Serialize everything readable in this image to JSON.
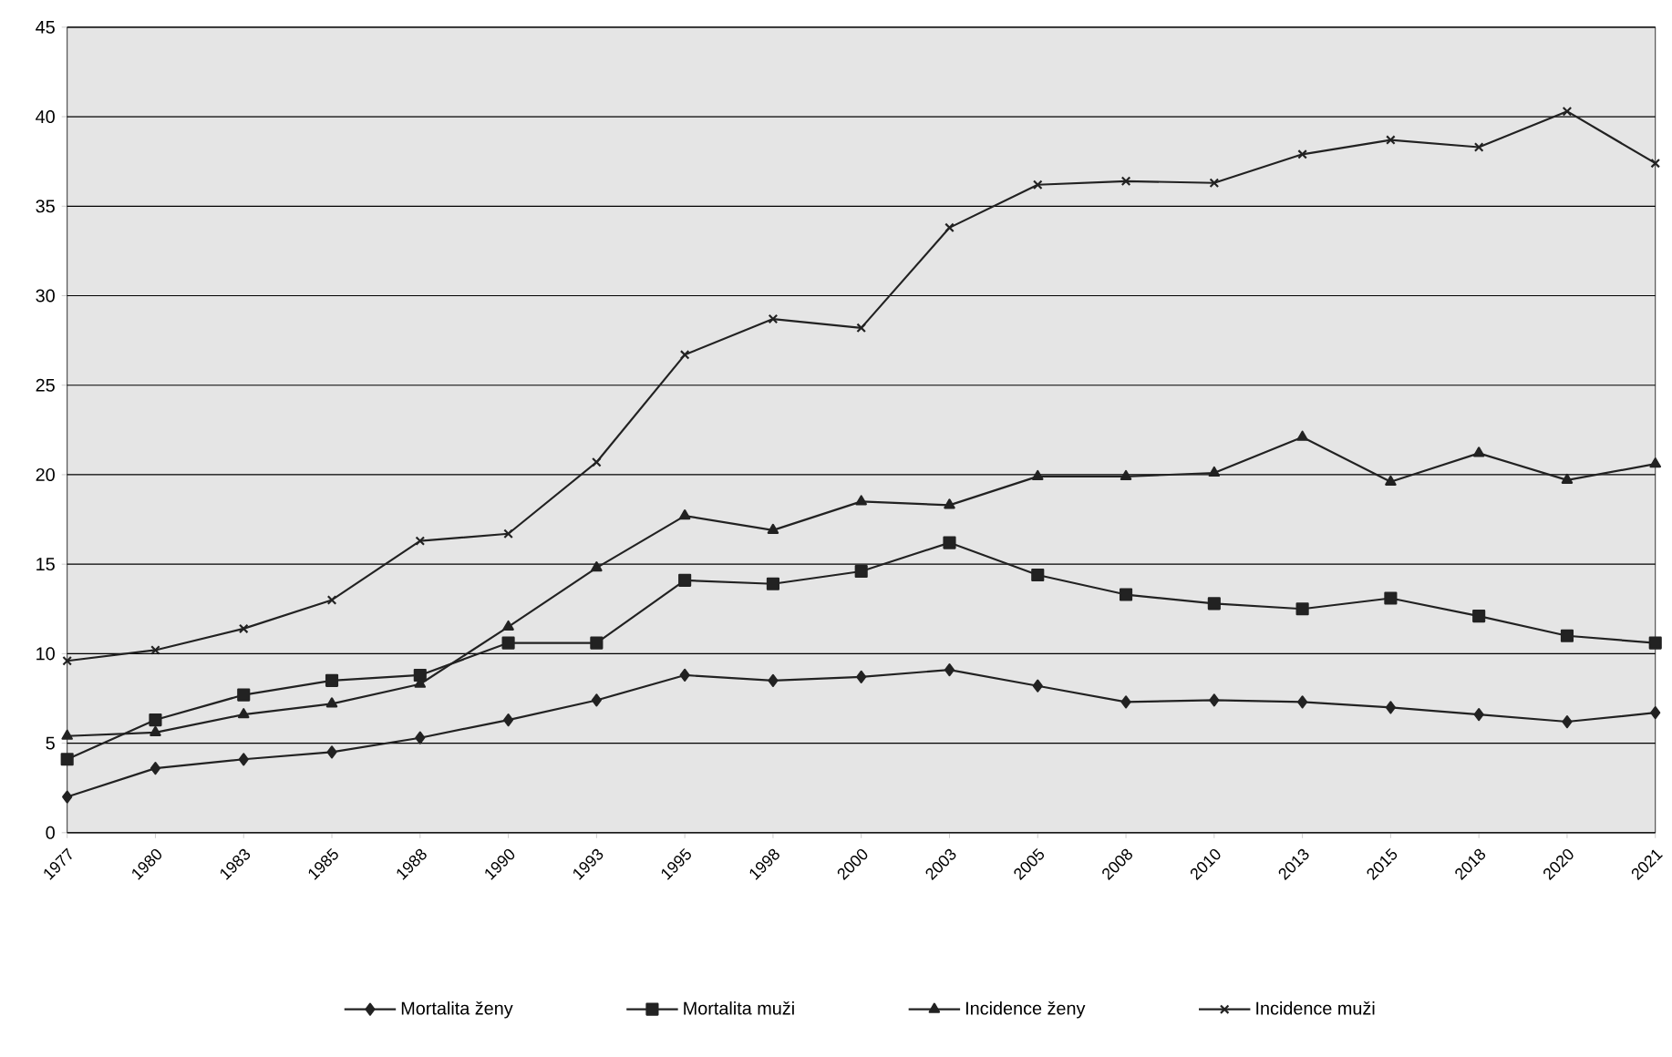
{
  "chart_data": {
    "type": "line",
    "categories": [
      "1977",
      "1980",
      "1983",
      "1985",
      "1988",
      "1990",
      "1993",
      "1995",
      "1998",
      "2000",
      "2003",
      "2005",
      "2008",
      "2010",
      "2013",
      "2015",
      "2018",
      "2020",
      "2021"
    ],
    "ylim": [
      0,
      45
    ],
    "yticks": [
      0,
      5,
      10,
      15,
      20,
      25,
      30,
      35,
      40,
      45
    ],
    "grid": "y",
    "legend": "bottom",
    "line_style": "solid",
    "series": [
      {
        "name": "Mortalita ženy",
        "color": "#222222",
        "marker": "diamond",
        "values": [
          2.0,
          3.6,
          4.1,
          4.5,
          5.3,
          6.3,
          7.4,
          8.8,
          8.5,
          8.7,
          9.1,
          8.2,
          7.3,
          7.4,
          7.3,
          7.0,
          6.6,
          6.2,
          6.7
        ]
      },
      {
        "name": "Mortalita muži",
        "color": "#222222",
        "marker": "square",
        "values": [
          4.1,
          6.3,
          7.7,
          8.5,
          8.8,
          10.6,
          10.6,
          14.1,
          13.9,
          14.6,
          16.2,
          14.4,
          13.3,
          12.8,
          12.5,
          13.1,
          12.1,
          11.0,
          10.6
        ]
      },
      {
        "name": "Incidence ženy",
        "color": "#222222",
        "marker": "triangle",
        "values": [
          5.4,
          5.6,
          6.6,
          7.2,
          8.3,
          11.5,
          14.8,
          17.7,
          16.9,
          18.5,
          18.3,
          19.9,
          19.9,
          20.1,
          22.1,
          19.6,
          21.2,
          19.7,
          20.6
        ]
      },
      {
        "name": "Incidence muži",
        "color": "#222222",
        "marker": "cross",
        "values": [
          9.6,
          10.2,
          11.4,
          13.0,
          16.3,
          16.7,
          20.7,
          26.7,
          28.7,
          28.2,
          33.8,
          36.2,
          36.4,
          36.3,
          37.9,
          38.7,
          38.3,
          40.3,
          37.4
        ]
      }
    ]
  }
}
